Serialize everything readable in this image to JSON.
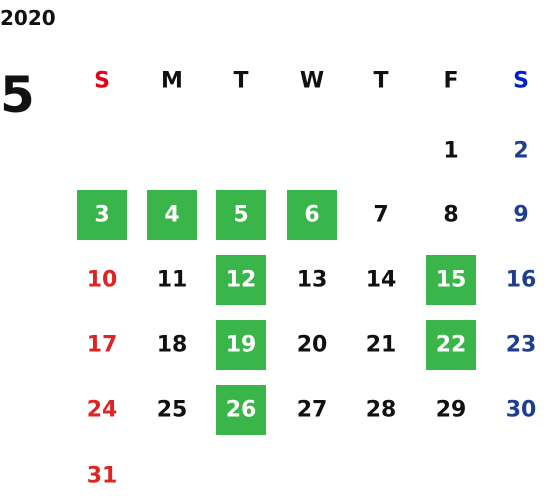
{
  "year": "2020",
  "month": "5",
  "weekdays": [
    "S",
    "M",
    "T",
    "W",
    "T",
    "F",
    "S"
  ],
  "header_colors": [
    "#e60012",
    "#111111",
    "#111111",
    "#111111",
    "#111111",
    "#111111",
    "#0020d0"
  ],
  "column_colors": [
    "#e02424",
    "#111111",
    "#111111",
    "#111111",
    "#111111",
    "#111111",
    "#1f3f8e"
  ],
  "highlight_color": "#3ab54a",
  "highlight_text_color": "#ffffff",
  "weeks": [
    [
      null,
      null,
      null,
      null,
      null,
      {
        "day": 1,
        "highlight": false
      },
      {
        "day": 2,
        "highlight": false
      }
    ],
    [
      {
        "day": 3,
        "highlight": true
      },
      {
        "day": 4,
        "highlight": true
      },
      {
        "day": 5,
        "highlight": true
      },
      {
        "day": 6,
        "highlight": true
      },
      {
        "day": 7,
        "highlight": false
      },
      {
        "day": 8,
        "highlight": false
      },
      {
        "day": 9,
        "highlight": false
      }
    ],
    [
      {
        "day": 10,
        "highlight": false
      },
      {
        "day": 11,
        "highlight": false
      },
      {
        "day": 12,
        "highlight": true
      },
      {
        "day": 13,
        "highlight": false
      },
      {
        "day": 14,
        "highlight": false
      },
      {
        "day": 15,
        "highlight": true
      },
      {
        "day": 16,
        "highlight": false
      }
    ],
    [
      {
        "day": 17,
        "highlight": false
      },
      {
        "day": 18,
        "highlight": false
      },
      {
        "day": 19,
        "highlight": true
      },
      {
        "day": 20,
        "highlight": false
      },
      {
        "day": 21,
        "highlight": false
      },
      {
        "day": 22,
        "highlight": true
      },
      {
        "day": 23,
        "highlight": false
      }
    ],
    [
      {
        "day": 24,
        "highlight": false
      },
      {
        "day": 25,
        "highlight": false
      },
      {
        "day": 26,
        "highlight": true
      },
      {
        "day": 27,
        "highlight": false
      },
      {
        "day": 28,
        "highlight": false
      },
      {
        "day": 29,
        "highlight": false
      },
      {
        "day": 30,
        "highlight": false
      }
    ],
    [
      {
        "day": 31,
        "highlight": false
      },
      null,
      null,
      null,
      null,
      null,
      null
    ]
  ]
}
